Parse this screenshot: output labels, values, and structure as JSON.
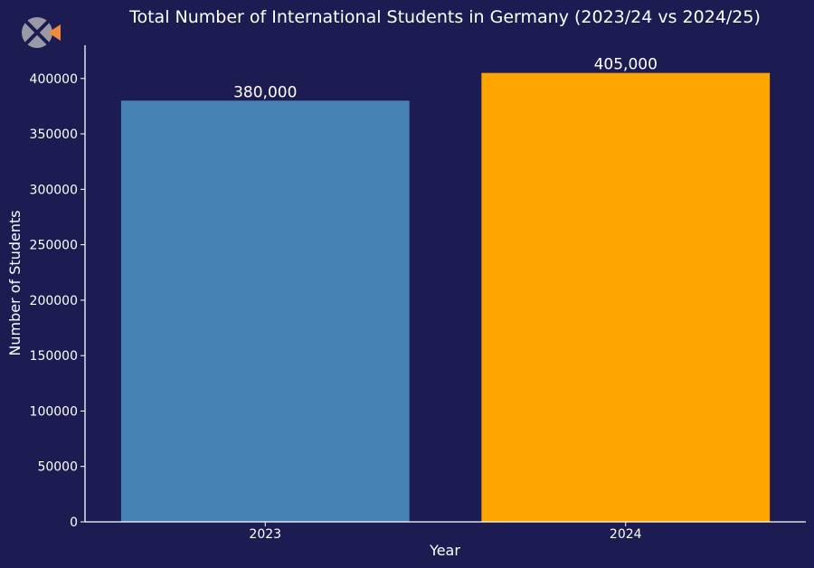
{
  "chart_data": {
    "type": "bar",
    "title": "Total Number of International Students in Germany (2023/24 vs 2024/25)",
    "xlabel": "Year",
    "ylabel": "Number of Students",
    "categories": [
      "2023",
      "2024"
    ],
    "values": [
      380000,
      405000
    ],
    "data_labels": [
      "380,000",
      "405,000"
    ],
    "bar_colors": [
      "#4682b4",
      "#ffa500"
    ],
    "ylim": [
      0,
      430000
    ],
    "yticks": [
      0,
      50000,
      100000,
      150000,
      200000,
      250000,
      300000,
      350000,
      400000
    ],
    "grid": false,
    "legend": "none"
  },
  "colors": {
    "background": "#1c1c52",
    "text": "#ffffff",
    "logo_gray": "#9a9aa6",
    "logo_accent": "#f08a3c"
  },
  "logo": {
    "icon": "brand-logo-icon"
  }
}
